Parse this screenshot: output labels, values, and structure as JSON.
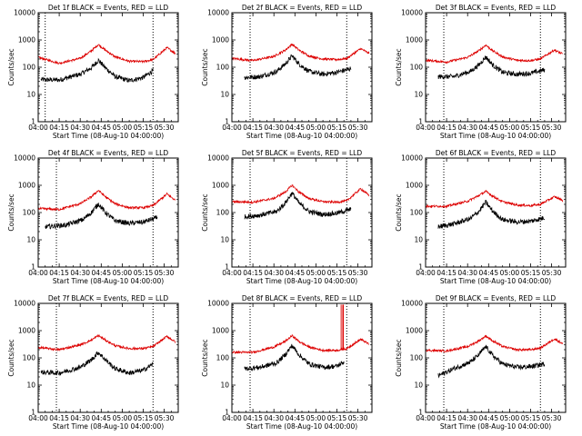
{
  "figure": {
    "colors": {
      "events": "#000000",
      "lld": "#dd0000",
      "axes": "#000000",
      "background": "#ffffff"
    }
  },
  "chart_data": [
    {
      "type": "line",
      "title": "Det 1f BLACK = Events, RED = LLD",
      "xlabel": "Start Time (08-Aug-10 04:00:00)",
      "ylabel": "Counts/sec",
      "yscale": "log",
      "xlim": [
        "04:00",
        "05:40"
      ],
      "ylim": [
        1,
        10000
      ],
      "x_ticks": [
        "04:00",
        "04:15",
        "04:30",
        "04:45",
        "05:00",
        "05:15",
        "05:30"
      ],
      "y_ticks": [
        "1",
        "10",
        "100",
        "1000",
        "10000"
      ],
      "vlines": [
        "04:05",
        "05:22"
      ],
      "series": [
        {
          "color": "black",
          "x": [
            "04:02",
            "04:15",
            "04:30",
            "04:38",
            "04:43",
            "04:48",
            "04:55",
            "05:05",
            "05:15",
            "05:22"
          ],
          "y": [
            35,
            34,
            55,
            95,
            180,
            95,
            45,
            32,
            42,
            75
          ]
        },
        {
          "color": "red",
          "x": [
            "04:00",
            "04:15",
            "04:30",
            "04:38",
            "04:43",
            "04:48",
            "04:55",
            "05:05",
            "05:15",
            "05:22",
            "05:32",
            "05:38"
          ],
          "y": [
            230,
            140,
            210,
            400,
            680,
            420,
            240,
            165,
            160,
            190,
            520,
            320
          ]
        }
      ]
    },
    {
      "type": "line",
      "title": "Det 2f BLACK = Events, RED = LLD",
      "xlabel": "Start Time (08-Aug-10 04:00:00)",
      "ylabel": "Counts/sec",
      "yscale": "log",
      "xlim": [
        "04:00",
        "05:40"
      ],
      "ylim": [
        1,
        10000
      ],
      "x_ticks": [
        "04:00",
        "04:15",
        "04:30",
        "04:45",
        "05:00",
        "05:15",
        "05:30"
      ],
      "y_ticks": [
        "1",
        "10",
        "100",
        "1000",
        "10000"
      ],
      "vlines": [
        "04:13",
        "05:22"
      ],
      "series": [
        {
          "color": "black",
          "x": [
            "04:09",
            "04:20",
            "04:32",
            "04:38",
            "04:43",
            "04:48",
            "04:55",
            "05:05",
            "05:15",
            "05:25"
          ],
          "y": [
            42,
            45,
            70,
            130,
            260,
            130,
            70,
            55,
            65,
            90
          ]
        },
        {
          "color": "red",
          "x": [
            "04:00",
            "04:15",
            "04:30",
            "04:38",
            "04:43",
            "04:48",
            "04:55",
            "05:05",
            "05:15",
            "05:22",
            "05:32",
            "05:38"
          ],
          "y": [
            210,
            175,
            250,
            420,
            700,
            420,
            260,
            200,
            190,
            210,
            480,
            320
          ]
        }
      ]
    },
    {
      "type": "line",
      "title": "Det 3f BLACK = Events, RED = LLD",
      "xlabel": "Start Time (08-Aug-10 04:00:00)",
      "ylabel": "Counts/sec",
      "yscale": "log",
      "xlim": [
        "04:00",
        "05:40"
      ],
      "ylim": [
        1,
        10000
      ],
      "x_ticks": [
        "04:00",
        "04:15",
        "04:30",
        "04:45",
        "05:00",
        "05:15",
        "05:30"
      ],
      "y_ticks": [
        "1",
        "10",
        "100",
        "1000",
        "10000"
      ],
      "vlines": [
        "04:13",
        "05:22"
      ],
      "series": [
        {
          "color": "black",
          "x": [
            "04:09",
            "04:20",
            "04:32",
            "04:38",
            "04:43",
            "04:48",
            "04:55",
            "05:05",
            "05:15",
            "05:25"
          ],
          "y": [
            45,
            45,
            70,
            120,
            240,
            120,
            65,
            55,
            60,
            80
          ]
        },
        {
          "color": "red",
          "x": [
            "04:00",
            "04:15",
            "04:30",
            "04:38",
            "04:43",
            "04:48",
            "04:55",
            "05:05",
            "05:15",
            "05:22",
            "05:32",
            "05:38"
          ],
          "y": [
            180,
            155,
            230,
            400,
            650,
            400,
            240,
            180,
            175,
            200,
            430,
            300
          ]
        }
      ]
    },
    {
      "type": "line",
      "title": "Det 4f BLACK = Events, RED = LLD",
      "xlabel": "Start Time (08-Aug-10 04:00:00)",
      "ylabel": "Counts/sec",
      "yscale": "log",
      "xlim": [
        "04:00",
        "05:40"
      ],
      "ylim": [
        1,
        10000
      ],
      "x_ticks": [
        "04:00",
        "04:15",
        "04:30",
        "04:45",
        "05:00",
        "05:15",
        "05:30"
      ],
      "y_ticks": [
        "1",
        "10",
        "100",
        "1000",
        "10000"
      ],
      "vlines": [
        "04:13",
        "05:22"
      ],
      "series": [
        {
          "color": "black",
          "x": [
            "04:05",
            "04:20",
            "04:32",
            "04:38",
            "04:43",
            "04:48",
            "04:55",
            "05:05",
            "05:15",
            "05:25"
          ],
          "y": [
            30,
            35,
            55,
            100,
            210,
            100,
            50,
            40,
            45,
            65
          ]
        },
        {
          "color": "red",
          "x": [
            "04:00",
            "04:15",
            "04:30",
            "04:38",
            "04:43",
            "04:48",
            "04:55",
            "05:05",
            "05:15",
            "05:22",
            "05:32",
            "05:38"
          ],
          "y": [
            140,
            130,
            210,
            380,
            650,
            380,
            210,
            150,
            150,
            180,
            480,
            280
          ]
        }
      ]
    },
    {
      "type": "line",
      "title": "Det 5f BLACK = Events, RED = LLD",
      "xlabel": "Start Time (08-Aug-10 04:00:00)",
      "ylabel": "Counts/sec",
      "yscale": "log",
      "xlim": [
        "04:00",
        "05:40"
      ],
      "ylim": [
        1,
        10000
      ],
      "x_ticks": [
        "04:00",
        "04:15",
        "04:30",
        "04:45",
        "05:00",
        "05:15",
        "05:30"
      ],
      "y_ticks": [
        "1",
        "10",
        "100",
        "1000",
        "10000"
      ],
      "vlines": [
        "04:13",
        "05:22"
      ],
      "series": [
        {
          "color": "black",
          "x": [
            "04:09",
            "04:20",
            "04:32",
            "04:38",
            "04:43",
            "04:48",
            "04:55",
            "05:05",
            "05:15",
            "05:25"
          ],
          "y": [
            70,
            80,
            110,
            220,
            520,
            220,
            110,
            85,
            95,
            130
          ]
        },
        {
          "color": "red",
          "x": [
            "04:00",
            "04:15",
            "04:30",
            "04:38",
            "04:43",
            "04:48",
            "04:55",
            "05:05",
            "05:15",
            "05:22",
            "05:32",
            "05:38"
          ],
          "y": [
            250,
            240,
            330,
            560,
            1000,
            560,
            330,
            250,
            240,
            270,
            750,
            420
          ]
        }
      ]
    },
    {
      "type": "line",
      "title": "Det 6f BLACK = Events, RED = LLD",
      "xlabel": "Start Time (08-Aug-10 04:00:00)",
      "ylabel": "Counts/sec",
      "yscale": "log",
      "xlim": [
        "04:00",
        "05:40"
      ],
      "ylim": [
        1,
        10000
      ],
      "x_ticks": [
        "04:00",
        "04:15",
        "04:30",
        "04:45",
        "05:00",
        "05:15",
        "05:30"
      ],
      "y_ticks": [
        "1",
        "10",
        "100",
        "1000",
        "10000"
      ],
      "vlines": [
        "04:13",
        "05:22"
      ],
      "series": [
        {
          "color": "black",
          "x": [
            "04:09",
            "04:20",
            "04:32",
            "04:38",
            "04:43",
            "04:48",
            "04:55",
            "05:05",
            "05:15",
            "05:25"
          ],
          "y": [
            30,
            38,
            60,
            110,
            240,
            110,
            55,
            45,
            48,
            65
          ]
        },
        {
          "color": "red",
          "x": [
            "04:00",
            "04:15",
            "04:30",
            "04:38",
            "04:43",
            "04:48",
            "04:55",
            "05:05",
            "05:15",
            "05:22",
            "05:32",
            "05:38"
          ],
          "y": [
            170,
            170,
            260,
            420,
            600,
            400,
            250,
            190,
            180,
            200,
            380,
            280
          ]
        }
      ]
    },
    {
      "type": "line",
      "title": "Det 7f BLACK = Events, RED = LLD",
      "xlabel": "Start Time (08-Aug-10 04:00:00)",
      "ylabel": "Counts/sec",
      "yscale": "log",
      "xlim": [
        "04:00",
        "05:40"
      ],
      "ylim": [
        1,
        10000
      ],
      "x_ticks": [
        "04:00",
        "04:15",
        "04:30",
        "04:45",
        "05:00",
        "05:15",
        "05:30"
      ],
      "y_ticks": [
        "1",
        "10",
        "100",
        "1000",
        "10000"
      ],
      "vlines": [
        "04:13",
        "05:22"
      ],
      "series": [
        {
          "color": "black",
          "x": [
            "04:02",
            "04:15",
            "04:30",
            "04:38",
            "04:43",
            "04:48",
            "04:55",
            "05:05",
            "05:15",
            "05:22"
          ],
          "y": [
            30,
            28,
            45,
            85,
            160,
            85,
            40,
            28,
            35,
            60
          ]
        },
        {
          "color": "red",
          "x": [
            "04:00",
            "04:15",
            "04:30",
            "04:38",
            "04:43",
            "04:48",
            "04:55",
            "05:05",
            "05:15",
            "05:22",
            "05:32",
            "05:38"
          ],
          "y": [
            240,
            200,
            300,
            450,
            660,
            450,
            280,
            220,
            220,
            260,
            620,
            380
          ]
        }
      ]
    },
    {
      "type": "line",
      "title": "Det 8f BLACK = Events, RED = LLD",
      "xlabel": "Start Time (08-Aug-10 04:00:00)",
      "ylabel": "Counts/sec",
      "yscale": "log",
      "xlim": [
        "04:00",
        "05:40"
      ],
      "ylim": [
        1,
        10000
      ],
      "x_ticks": [
        "04:00",
        "04:15",
        "04:30",
        "04:45",
        "05:00",
        "05:15",
        "05:30"
      ],
      "y_ticks": [
        "1",
        "10",
        "100",
        "1000",
        "10000"
      ],
      "vlines": [
        "04:13",
        "05:22"
      ],
      "series": [
        {
          "color": "black",
          "x": [
            "04:09",
            "04:20",
            "04:32",
            "04:38",
            "04:43",
            "04:48",
            "04:55",
            "05:05",
            "05:15",
            "05:20"
          ],
          "y": [
            40,
            45,
            65,
            130,
            280,
            130,
            60,
            45,
            50,
            70
          ]
        },
        {
          "color": "red",
          "x": [
            "04:00",
            "04:15",
            "04:30",
            "04:38",
            "04:43",
            "04:48",
            "04:55",
            "05:05",
            "05:15",
            "05:22",
            "05:32",
            "05:38"
          ],
          "y": [
            160,
            160,
            250,
            400,
            650,
            400,
            250,
            190,
            190,
            220,
            480,
            320
          ]
        }
      ],
      "annotations": [
        "spikes to ~10000 near 05:18-05:20"
      ]
    },
    {
      "type": "line",
      "title": "Det 9f BLACK = Events, RED = LLD",
      "xlabel": "Start Time (08-Aug-10 04:00:00)",
      "ylabel": "Counts/sec",
      "yscale": "log",
      "xlim": [
        "04:00",
        "05:40"
      ],
      "ylim": [
        1,
        10000
      ],
      "x_ticks": [
        "04:00",
        "04:15",
        "04:30",
        "04:45",
        "05:00",
        "05:15",
        "05:30"
      ],
      "y_ticks": [
        "1",
        "10",
        "100",
        "1000",
        "10000"
      ],
      "vlines": [
        "04:13",
        "05:22"
      ],
      "series": [
        {
          "color": "black",
          "x": [
            "04:09",
            "04:20",
            "04:32",
            "04:38",
            "04:43",
            "04:48",
            "04:55",
            "05:05",
            "05:15",
            "05:25"
          ],
          "y": [
            22,
            40,
            70,
            130,
            260,
            120,
            60,
            45,
            48,
            60
          ]
        },
        {
          "color": "red",
          "x": [
            "04:00",
            "04:15",
            "04:30",
            "04:38",
            "04:43",
            "04:48",
            "04:55",
            "05:05",
            "05:15",
            "05:22",
            "05:32",
            "05:38"
          ],
          "y": [
            190,
            180,
            260,
            420,
            640,
            420,
            260,
            200,
            200,
            230,
            500,
            330
          ]
        }
      ]
    }
  ]
}
